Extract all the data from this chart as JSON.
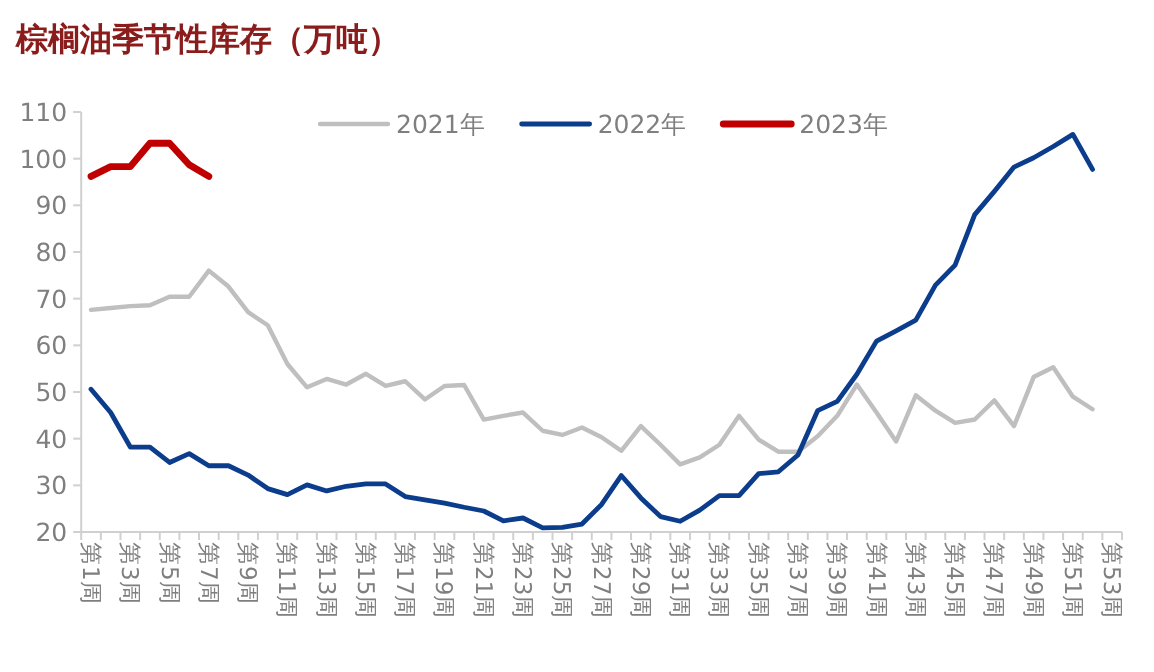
{
  "chart_data": {
    "type": "line",
    "title": "棕榈油季节性库存（万吨）",
    "categories": [
      "第1周",
      null,
      "第3周",
      null,
      "第5周",
      null,
      "第7周",
      null,
      "第9周",
      null,
      "第11周",
      null,
      "第13周",
      null,
      "第15周",
      null,
      "第17周",
      null,
      "第19周",
      null,
      "第21周",
      null,
      "第23周",
      null,
      "第25周",
      null,
      "第27周",
      null,
      "第29周",
      null,
      "第31周",
      null,
      "第33周",
      null,
      "第35周",
      null,
      "第37周",
      null,
      "第39周",
      null,
      "第41周",
      null,
      "第43周",
      null,
      "第45周",
      null,
      "第47周",
      null,
      "第49周",
      null,
      "第51周",
      null,
      "第53周"
    ],
    "series": [
      {
        "name": "2021年",
        "color": "#bfbfbf",
        "values": [
          67.6,
          68,
          68.4,
          68.6,
          70.4,
          70.4,
          76,
          72.6,
          67.1,
          64.3,
          56,
          51,
          52.8,
          51.6,
          53.9,
          51.3,
          52.3,
          48.4,
          51.3,
          51.5,
          44.1,
          44.9,
          45.6,
          41.7,
          40.8,
          42.4,
          40.3,
          37.4,
          42.7,
          38.7,
          34.5,
          36,
          38.7,
          44.9,
          39.8,
          37.2,
          37.2,
          40.5,
          44.9,
          51.6,
          45.6,
          39.4,
          49.3,
          46,
          43.4,
          44.1,
          48.2,
          42.7,
          53.2,
          55.3,
          49,
          46.3,
          null
        ]
      },
      {
        "name": "2022年",
        "color": "#0b3d8c",
        "values": [
          50.6,
          45.6,
          38.2,
          38.2,
          34.9,
          36.8,
          34.2,
          34.2,
          32.2,
          29.3,
          28,
          30.1,
          28.8,
          29.8,
          30.3,
          30.3,
          27.6,
          26.9,
          26.2,
          25.3,
          24.5,
          22.4,
          23,
          20.9,
          21,
          21.7,
          25.9,
          32.1,
          27.3,
          23.3,
          22.3,
          24.7,
          27.8,
          27.8,
          32.5,
          32.9,
          36.5,
          46,
          48,
          53.8,
          60.9,
          63.1,
          65.4,
          72.9,
          77.2,
          88,
          93,
          98.2,
          100.2,
          102.6,
          105.2,
          97.7,
          null
        ]
      },
      {
        "name": "2023年",
        "color": "#c00000",
        "values": [
          96.2,
          98.3,
          98.3,
          103.3,
          103.3,
          98.7,
          96.2,
          null,
          null,
          null,
          null,
          null,
          null,
          null,
          null,
          null,
          null,
          null,
          null,
          null,
          null,
          null,
          null,
          null,
          null,
          null,
          null,
          null,
          null,
          null,
          null,
          null,
          null,
          null,
          null,
          null,
          null,
          null,
          null,
          null,
          null,
          null,
          null,
          null,
          null,
          null,
          null,
          null,
          null,
          null,
          null,
          null,
          null
        ]
      }
    ],
    "ylim": [
      20,
      110
    ],
    "yticks": [
      20,
      30,
      40,
      50,
      60,
      70,
      80,
      90,
      100,
      110
    ],
    "grid": false,
    "legend": "top",
    "marker": "none",
    "line_style": "solid"
  }
}
